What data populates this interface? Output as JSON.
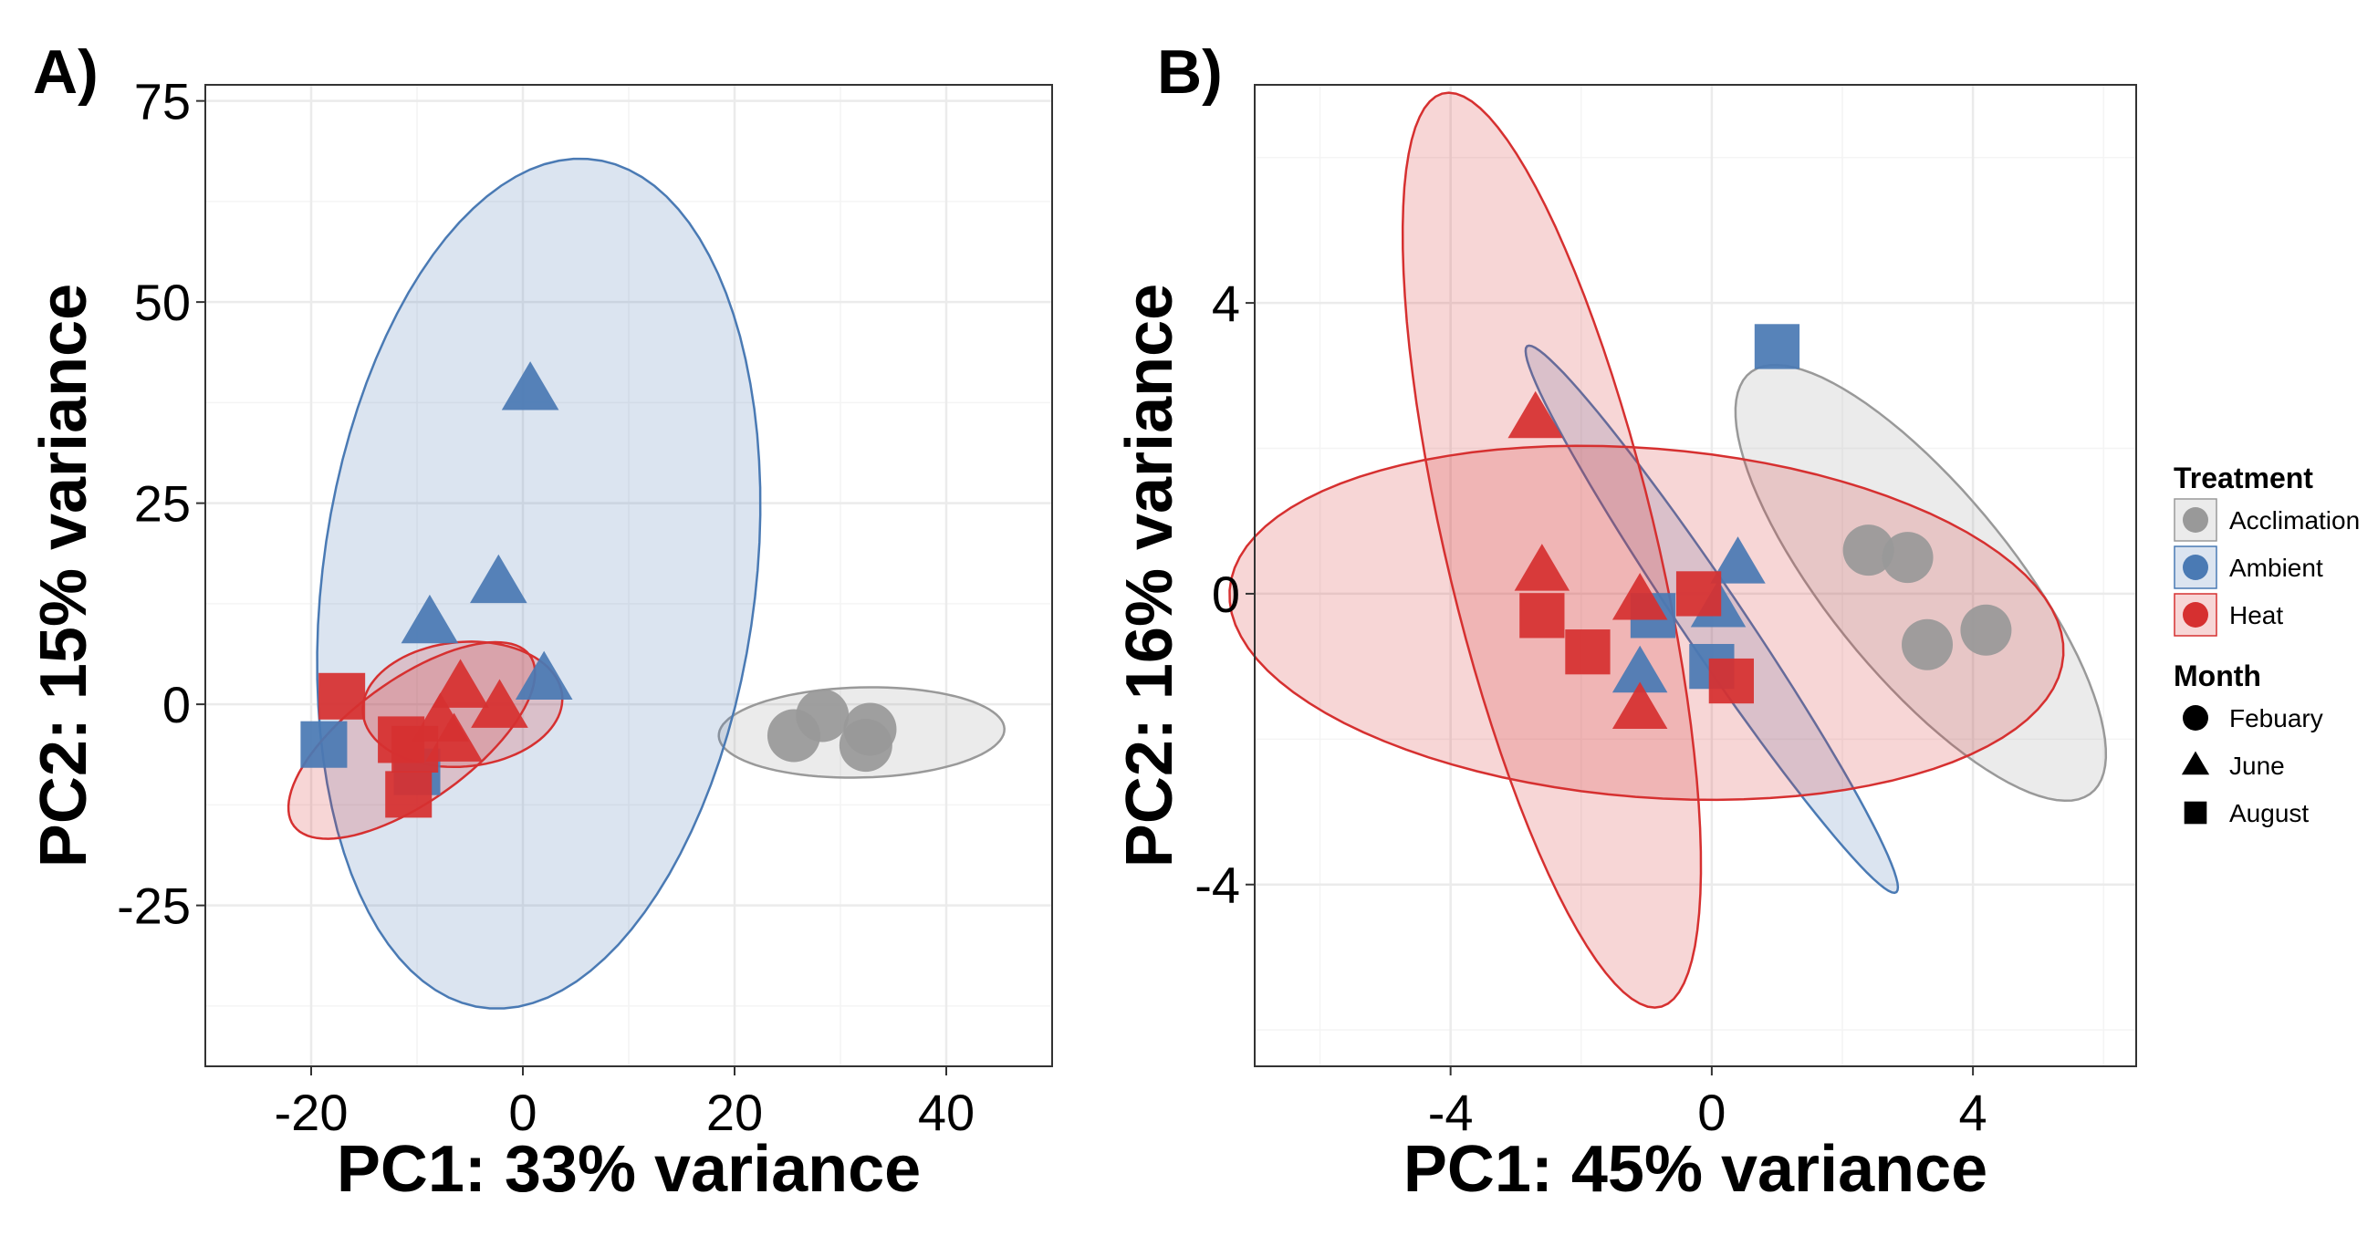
{
  "colors": {
    "Acclimation": "#999999",
    "Ambient": "#4a7ab4",
    "Heat": "#d63030",
    "grid_major": "#ebebeb",
    "grid_minor": "#f4f4f4",
    "panel_border": "#333333"
  },
  "legend": {
    "treatment_title": "Treatment",
    "treatments": [
      "Acclimation",
      "Ambient",
      "Heat"
    ],
    "month_title": "Month",
    "months": [
      "Febuary",
      "June",
      "August"
    ],
    "month_shapes": [
      "circle",
      "triangle",
      "square"
    ]
  },
  "chart_data": [
    {
      "type": "scatter",
      "panel_label": "A)",
      "xlabel": "PC1: 33% variance",
      "ylabel": "PC2: 15% variance",
      "xlim": [
        -30,
        50
      ],
      "ylim": [
        -45,
        77
      ],
      "xticks": [
        -20,
        0,
        20,
        40
      ],
      "xtick_labels": [
        "-20",
        "0",
        "20",
        "40"
      ],
      "yticks": [
        -25,
        0,
        25,
        50,
        75
      ],
      "ytick_labels": [
        "-25",
        "0",
        "25",
        "50",
        "75"
      ],
      "grid": true,
      "ellipses": [
        {
          "treatment": "Acclimation",
          "cx": 32,
          "cy": -3.5,
          "rx": 13.5,
          "ry": 5.6,
          "angle_deg": 2
        },
        {
          "treatment": "Ambient",
          "cx": 1.5,
          "cy": 15,
          "rx": 53,
          "ry": 20.5,
          "angle_deg": -95
        },
        {
          "treatment": "Heat",
          "cx": -10.5,
          "cy": -4.5,
          "rx": 15.5,
          "ry": 6.7,
          "angle_deg": 47
        },
        {
          "treatment": "Heat",
          "cx": -5.7,
          "cy": 0,
          "rx": 9.5,
          "ry": 7.7,
          "angle_deg": 12
        }
      ],
      "points": [
        {
          "x": 28.3,
          "y": -1.4,
          "treatment": "Acclimation",
          "month": "Febuary"
        },
        {
          "x": 32.8,
          "y": -3.1,
          "treatment": "Acclimation",
          "month": "Febuary"
        },
        {
          "x": 25.6,
          "y": -3.9,
          "treatment": "Acclimation",
          "month": "Febuary"
        },
        {
          "x": 32.4,
          "y": -5.1,
          "treatment": "Acclimation",
          "month": "Febuary"
        },
        {
          "x": 0.7,
          "y": 39,
          "treatment": "Ambient",
          "month": "June"
        },
        {
          "x": -2.3,
          "y": 15,
          "treatment": "Ambient",
          "month": "June"
        },
        {
          "x": -8.8,
          "y": 10,
          "treatment": "Ambient",
          "month": "June"
        },
        {
          "x": 2,
          "y": 3,
          "treatment": "Ambient",
          "month": "June"
        },
        {
          "x": -18.8,
          "y": -5,
          "treatment": "Ambient",
          "month": "August"
        },
        {
          "x": -10,
          "y": -8.4,
          "treatment": "Ambient",
          "month": "August"
        },
        {
          "x": -5.9,
          "y": 2,
          "treatment": "Heat",
          "month": "June"
        },
        {
          "x": -2.2,
          "y": -0.5,
          "treatment": "Heat",
          "month": "June"
        },
        {
          "x": -7.8,
          "y": -2.2,
          "treatment": "Heat",
          "month": "June"
        },
        {
          "x": -6.5,
          "y": -4.7,
          "treatment": "Heat",
          "month": "June"
        },
        {
          "x": -17.1,
          "y": 1,
          "treatment": "Heat",
          "month": "August"
        },
        {
          "x": -11.5,
          "y": -4.4,
          "treatment": "Heat",
          "month": "August"
        },
        {
          "x": -10.2,
          "y": -5.6,
          "treatment": "Heat",
          "month": "August"
        },
        {
          "x": -10.8,
          "y": -11.2,
          "treatment": "Heat",
          "month": "August"
        }
      ]
    },
    {
      "type": "scatter",
      "panel_label": "B)",
      "xlabel": "PC1: 45% variance",
      "ylabel": "PC2: 16% variance",
      "xlim": [
        -7,
        6.5
      ],
      "ylim": [
        -6.5,
        7
      ],
      "xticks": [
        -4,
        0,
        4
      ],
      "xtick_labels": [
        "-4",
        "0",
        "4"
      ],
      "yticks": [
        -4,
        0,
        4
      ],
      "ytick_labels": [
        "-4",
        "0",
        "4"
      ],
      "grid": true,
      "ellipses": [
        {
          "treatment": "Acclimation",
          "cx": 3.2,
          "cy": 0.15,
          "rx": 3.9,
          "ry": 1.35,
          "angle_deg": -47
        },
        {
          "treatment": "Ambient",
          "cx": 0,
          "cy": -0.35,
          "rx": 4.7,
          "ry": 0.45,
          "angle_deg": -53
        },
        {
          "treatment": "Heat",
          "cx": -2.45,
          "cy": 0.6,
          "rx": 6.5,
          "ry": 1.6,
          "angle_deg": -75
        },
        {
          "treatment": "Heat",
          "cx": -1,
          "cy": -0.4,
          "rx": 6.4,
          "ry": 2.4,
          "angle_deg": -4
        }
      ],
      "points": [
        {
          "x": 2.4,
          "y": 0.6,
          "treatment": "Acclimation",
          "month": "Febuary"
        },
        {
          "x": 3,
          "y": 0.5,
          "treatment": "Acclimation",
          "month": "Febuary"
        },
        {
          "x": 4.2,
          "y": -0.5,
          "treatment": "Acclimation",
          "month": "Febuary"
        },
        {
          "x": 3.3,
          "y": -0.7,
          "treatment": "Acclimation",
          "month": "Febuary"
        },
        {
          "x": 0.4,
          "y": 0.4,
          "treatment": "Ambient",
          "month": "June"
        },
        {
          "x": 0.1,
          "y": -0.2,
          "treatment": "Ambient",
          "month": "June"
        },
        {
          "x": -1.1,
          "y": -1.1,
          "treatment": "Ambient",
          "month": "June"
        },
        {
          "x": 1,
          "y": 3.4,
          "treatment": "Ambient",
          "month": "August"
        },
        {
          "x": -0.9,
          "y": -0.3,
          "treatment": "Ambient",
          "month": "August"
        },
        {
          "x": 0,
          "y": -1,
          "treatment": "Ambient",
          "month": "August"
        },
        {
          "x": -2.7,
          "y": 2.4,
          "treatment": "Heat",
          "month": "June"
        },
        {
          "x": -2.6,
          "y": 0.3,
          "treatment": "Heat",
          "month": "June"
        },
        {
          "x": -1.1,
          "y": -0.1,
          "treatment": "Heat",
          "month": "June"
        },
        {
          "x": -1.1,
          "y": -1.6,
          "treatment": "Heat",
          "month": "June"
        },
        {
          "x": -2.6,
          "y": -0.3,
          "treatment": "Heat",
          "month": "August"
        },
        {
          "x": -1.9,
          "y": -0.8,
          "treatment": "Heat",
          "month": "August"
        },
        {
          "x": -0.2,
          "y": 0,
          "treatment": "Heat",
          "month": "August"
        },
        {
          "x": 0.3,
          "y": -1.2,
          "treatment": "Heat",
          "month": "August"
        }
      ]
    }
  ]
}
